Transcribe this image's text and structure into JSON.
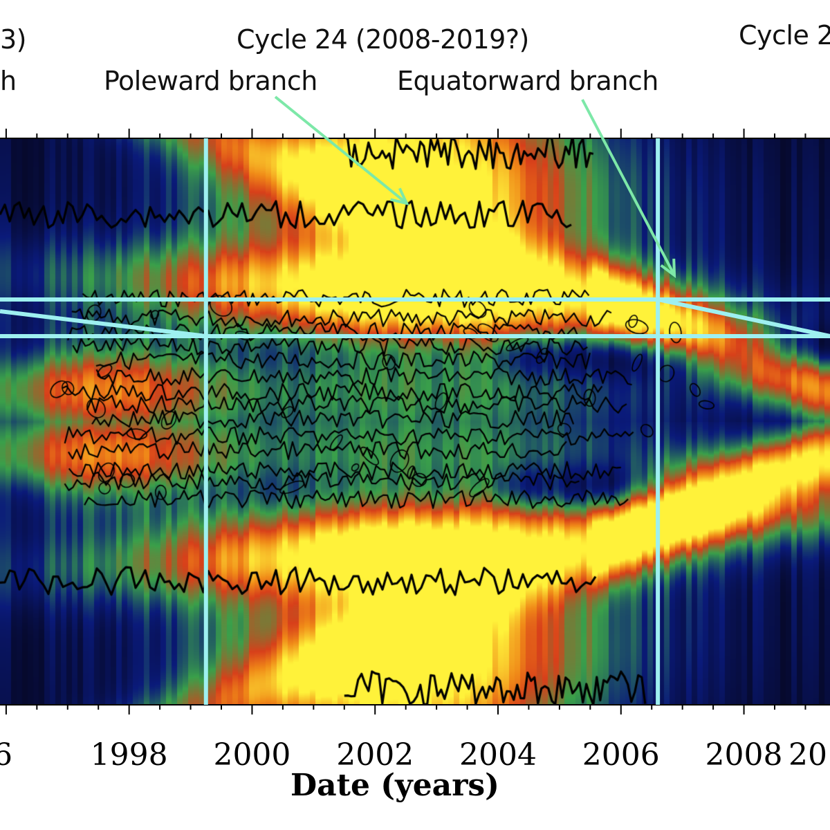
{
  "annotations": {
    "cycle23_fragment": "3)",
    "branch_fragment": "h",
    "cycle24": "Cycle 24 (2008-2019?)",
    "cycle25_fragment": "Cycle 2",
    "poleward": "Poleward branch",
    "equatorward": "Equatorward branch"
  },
  "colors": {
    "guide_lines": "#9ef0f0",
    "arrows": "#7de8a8",
    "contours": "#000000",
    "colormap": [
      "#05051a",
      "#0a1a7a",
      "#3aa04a",
      "#d8401a",
      "#f08a18",
      "#fff23a"
    ]
  },
  "chart_data": {
    "type": "heatmap",
    "title": "",
    "xlabel": "Date (years)",
    "ylabel": "",
    "x_tick_labels": [
      "6",
      "1998",
      "2000",
      "2002",
      "2004",
      "2006",
      "2008",
      "20"
    ],
    "x_major_ticks": [
      1996,
      1998,
      2000,
      2002,
      2004,
      2006,
      2008,
      2010
    ],
    "x_minor_tick_interval_years": 0.5,
    "xlim": [
      1995.9,
      2009.4
    ],
    "guide_lines_vertical_years": [
      1999.25,
      2006.6
    ],
    "guide_lines_horizontal": [
      "upper latitude band",
      "lower latitude band"
    ],
    "features": [
      {
        "name": "Cycle 24 poleward branch",
        "years": [
          1999.5,
          2005.5
        ],
        "trend": "high-latitude band migrating poleward"
      },
      {
        "name": "Cycle 24 equatorward branch",
        "years": [
          2006.6,
          2009.4
        ],
        "trend": "torsional band migrating toward equator"
      },
      {
        "name": "Cycle 23 activity",
        "years": [
          1996,
          2008
        ],
        "trend": "contoured active belt near equator"
      }
    ],
    "colorbar": "black-blue-green-red-orange-yellow (low to high)"
  }
}
